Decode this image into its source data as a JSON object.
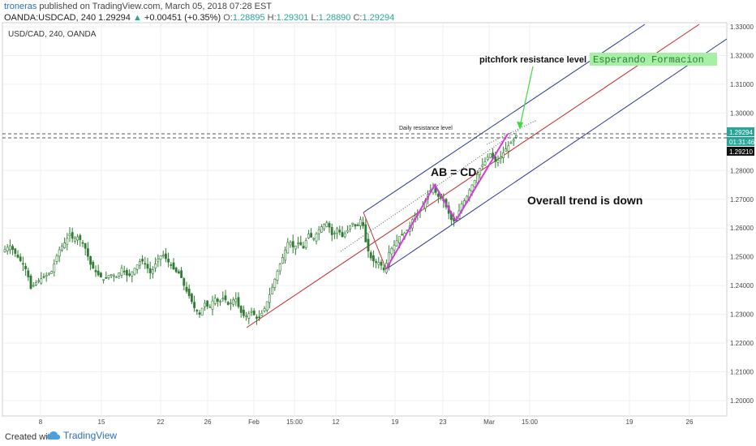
{
  "header": {
    "author": "troneras",
    "published": "published on TradingView.com, March 05, 2018 07:28 EST",
    "symbol": "OANDA:USDCAD, 240",
    "price": "1.29294",
    "change": "+0.00451 (+0.35%)",
    "open_label": "O:",
    "open": "1.28895",
    "high_label": "H:",
    "high": "1.29301",
    "low_label": "L:",
    "low": "1.28890",
    "close_label": "C:",
    "close": "1.29294"
  },
  "pane_title": "USD/CAD, 240, OANDA",
  "annotations": {
    "pitchfork": "pitchfork resistance level",
    "esperando": "Esperando Formacion",
    "daily": "Daily resistance level",
    "abcd": "AB = CD",
    "trend": "Overall trend is down"
  },
  "price_tags": {
    "last": "1.29294",
    "countdown": "01:31:46",
    "level": "1.29210"
  },
  "footer": {
    "created": "Created with",
    "brand": "TradingView"
  },
  "colors": {
    "up": "#26a69a",
    "down": "#ef5350",
    "candle": "#2e7d32",
    "fork_outer": "#283593",
    "fork_median": "#c62828",
    "abcd": "#d63adf",
    "highlight": "#a5f0a5"
  },
  "chart_data": {
    "type": "candlestick",
    "ylim": [
      1.19,
      1.335
    ],
    "y_ticks": [
      "1.33000",
      "1.32000",
      "1.31000",
      "1.30000",
      "1.29000",
      "1.28000",
      "1.27000",
      "1.26000",
      "1.25000",
      "1.24000",
      "1.23000",
      "1.22000",
      "1.21000",
      "1.20000"
    ],
    "x_ticks": [
      "8",
      "15",
      "22",
      "26",
      "Feb",
      "15:00",
      "12",
      "19",
      "23",
      "Mar",
      "15:00",
      "19",
      "26"
    ],
    "path": [
      [
        0,
        1.251
      ],
      [
        12,
        1.254
      ],
      [
        24,
        1.249
      ],
      [
        30,
        1.247
      ],
      [
        34,
        1.244
      ],
      [
        38,
        1.239
      ],
      [
        44,
        1.241
      ],
      [
        54,
        1.243
      ],
      [
        64,
        1.245
      ],
      [
        72,
        1.252
      ],
      [
        80,
        1.255
      ],
      [
        86,
        1.258
      ],
      [
        90,
        1.256
      ],
      [
        96,
        1.257
      ],
      [
        104,
        1.254
      ],
      [
        112,
        1.247
      ],
      [
        120,
        1.244
      ],
      [
        128,
        1.242
      ],
      [
        136,
        1.244
      ],
      [
        144,
        1.243
      ],
      [
        150,
        1.246
      ],
      [
        158,
        1.243
      ],
      [
        166,
        1.246
      ],
      [
        174,
        1.249
      ],
      [
        180,
        1.247
      ],
      [
        186,
        1.244
      ],
      [
        194,
        1.249
      ],
      [
        200,
        1.251
      ],
      [
        208,
        1.248
      ],
      [
        216,
        1.245
      ],
      [
        222,
        1.244
      ],
      [
        228,
        1.239
      ],
      [
        234,
        1.236
      ],
      [
        240,
        1.232
      ],
      [
        246,
        1.23
      ],
      [
        252,
        1.234
      ],
      [
        258,
        1.232
      ],
      [
        264,
        1.236
      ],
      [
        270,
        1.234
      ],
      [
        276,
        1.236
      ],
      [
        282,
        1.233
      ],
      [
        290,
        1.236
      ],
      [
        296,
        1.231
      ],
      [
        302,
        1.229
      ],
      [
        310,
        1.231
      ],
      [
        318,
        1.228
      ],
      [
        326,
        1.232
      ],
      [
        334,
        1.238
      ],
      [
        342,
        1.245
      ],
      [
        350,
        1.251
      ],
      [
        356,
        1.256
      ],
      [
        362,
        1.253
      ],
      [
        368,
        1.255
      ],
      [
        374,
        1.253
      ],
      [
        380,
        1.258
      ],
      [
        386,
        1.256
      ],
      [
        392,
        1.259
      ],
      [
        398,
        1.261
      ],
      [
        404,
        1.262
      ],
      [
        410,
        1.257
      ],
      [
        416,
        1.26
      ],
      [
        422,
        1.257
      ],
      [
        428,
        1.259
      ],
      [
        434,
        1.262
      ],
      [
        440,
        1.26
      ],
      [
        446,
        1.264
      ],
      [
        450,
        1.256
      ],
      [
        456,
        1.25
      ],
      [
        462,
        1.248
      ],
      [
        468,
        1.248
      ],
      [
        474,
        1.245
      ],
      [
        480,
        1.252
      ],
      [
        486,
        1.254
      ],
      [
        492,
        1.257
      ],
      [
        498,
        1.258
      ],
      [
        504,
        1.26
      ],
      [
        510,
        1.264
      ],
      [
        516,
        1.265
      ],
      [
        522,
        1.268
      ],
      [
        528,
        1.272
      ],
      [
        534,
        1.274
      ],
      [
        540,
        1.271
      ],
      [
        546,
        1.27
      ],
      [
        552,
        1.266
      ],
      [
        556,
        1.263
      ],
      [
        562,
        1.262
      ],
      [
        568,
        1.268
      ],
      [
        574,
        1.27
      ],
      [
        580,
        1.274
      ],
      [
        586,
        1.277
      ],
      [
        592,
        1.281
      ],
      [
        598,
        1.283
      ],
      [
        604,
        1.286
      ],
      [
        610,
        1.283
      ],
      [
        616,
        1.284
      ],
      [
        622,
        1.287
      ],
      [
        628,
        1.289
      ],
      [
        634,
        1.291
      ],
      [
        638,
        1.293
      ]
    ]
  }
}
